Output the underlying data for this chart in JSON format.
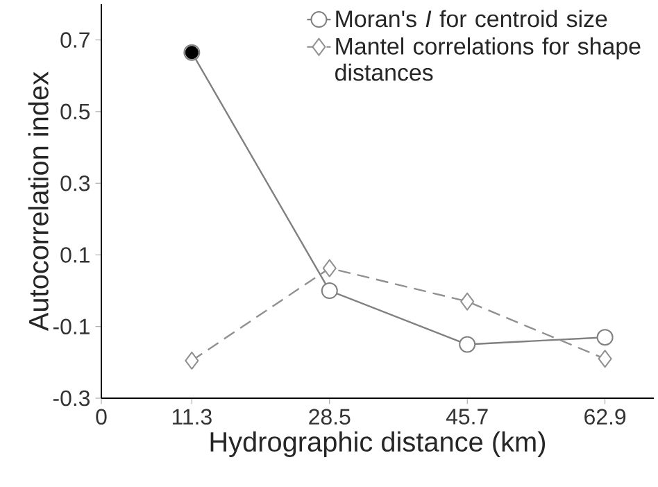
{
  "chart_data": {
    "type": "line",
    "xlabel": "Hydrographic distance (km)",
    "ylabel": "Autocorrelation index",
    "x": [
      11.3,
      28.5,
      45.7,
      62.9
    ],
    "series": [
      {
        "name": "Moran's *I* for centroid size",
        "color": "#808080",
        "values": [
          0.665,
          0.0,
          -0.15,
          -0.13
        ],
        "marker": "circle",
        "line_style": "solid"
      },
      {
        "name": "Mantel correlations for shape distances",
        "color": "#909090",
        "values": [
          -0.195,
          0.063,
          -0.03,
          -0.19
        ],
        "marker": "diamond",
        "line_style": "dashed"
      },
      {
        "type": "scatter",
        "color": "#000000",
        "x": [
          11.3
        ],
        "values": [
          0.665
        ],
        "marker": "circle"
      }
    ],
    "xlim": [
      0,
      69
    ],
    "ylim": [
      -0.3,
      0.8
    ],
    "xticks": [
      0,
      11.3,
      28.5,
      45.7,
      62.9
    ],
    "yticks": [
      -0.3,
      -0.1,
      0.1,
      0.3,
      0.5,
      0.7
    ],
    "legend": "top right",
    "grid": false
  }
}
